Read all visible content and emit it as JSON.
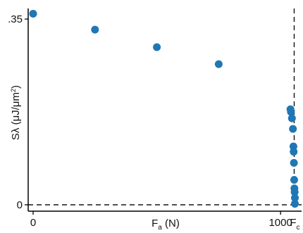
{
  "chart_data": {
    "type": "scatter",
    "xlabel": {
      "main": "F",
      "sub": "a",
      "rest": " (N)"
    },
    "ylabel": {
      "main": "Sλ (μJ/μm",
      "sup": "2",
      "rest": ")"
    },
    "x_ticks": [
      {
        "value": 0,
        "label": "0"
      },
      {
        "value": 1000,
        "label": "1000"
      }
    ],
    "y_ticks": [
      {
        "value": 0,
        "label": "0"
      },
      {
        "value": 0.35,
        "label": ".35"
      }
    ],
    "xlim": [
      -20,
      1085
    ],
    "ylim": [
      -0.012,
      0.37
    ],
    "reference_lines": [
      {
        "orientation": "vertical",
        "value": 1055,
        "label_main": "F",
        "label_sub": "c",
        "style": "dashed"
      },
      {
        "orientation": "horizontal",
        "value": 0,
        "style": "dashed"
      }
    ],
    "grid": false,
    "marker_color": "#1f77b4",
    "points": [
      {
        "x": 0,
        "y": 0.36
      },
      {
        "x": 250,
        "y": 0.33
      },
      {
        "x": 500,
        "y": 0.297
      },
      {
        "x": 750,
        "y": 0.265
      },
      {
        "x": 1040,
        "y": 0.18
      },
      {
        "x": 1042,
        "y": 0.175
      },
      {
        "x": 1046,
        "y": 0.163
      },
      {
        "x": 1050,
        "y": 0.143
      },
      {
        "x": 1052,
        "y": 0.11
      },
      {
        "x": 1053,
        "y": 0.1
      },
      {
        "x": 1054,
        "y": 0.079
      },
      {
        "x": 1055,
        "y": 0.047
      },
      {
        "x": 1056,
        "y": 0.031
      },
      {
        "x": 1057,
        "y": 0.024
      },
      {
        "x": 1058,
        "y": 0.013
      },
      {
        "x": 1058,
        "y": 0.002
      }
    ]
  }
}
